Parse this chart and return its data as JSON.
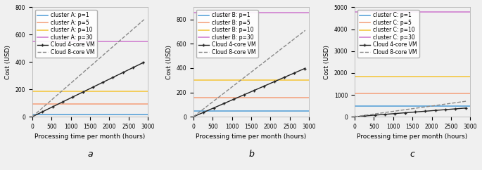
{
  "subplots": [
    {
      "label": "a",
      "cluster_label": "cluster A",
      "ylim": [
        0,
        800
      ],
      "yticks": [
        0,
        200,
        400,
        600,
        800
      ],
      "cluster_costs": [
        18,
        95,
        185,
        548
      ],
      "cluster_colors": [
        "#5ba3d9",
        "#f4a582",
        "#f4c842",
        "#d080d0"
      ]
    },
    {
      "label": "b",
      "cluster_label": "cluster B",
      "ylim": [
        0,
        900
      ],
      "yticks": [
        0,
        200,
        400,
        600,
        800
      ],
      "cluster_costs": [
        45,
        158,
        300,
        855
      ],
      "cluster_colors": [
        "#5ba3d9",
        "#f4a582",
        "#f4c842",
        "#d080d0"
      ]
    },
    {
      "label": "c",
      "cluster_label": "cluster C",
      "ylim": [
        0,
        5000
      ],
      "yticks": [
        0,
        1000,
        2000,
        3000,
        4000,
        5000
      ],
      "cluster_costs": [
        500,
        1080,
        1830,
        4800
      ],
      "cluster_colors": [
        "#5ba3d9",
        "#f4a582",
        "#f4c842",
        "#d080d0"
      ]
    }
  ],
  "p_values": [
    1,
    5,
    10,
    30
  ],
  "x_max": 2900,
  "cloud_4core_slope": 0.1375,
  "cloud_8core_slope": 0.245,
  "xlabel": "Processing time per month (hours)",
  "ylabel": "Cost (USD)",
  "background_color": "#f0f0f0",
  "cloud_4core_color": "#222222",
  "cloud_8core_color": "#888888",
  "legend_fontsize": 5.5,
  "axis_fontsize": 6.5,
  "tick_fontsize": 5.5
}
